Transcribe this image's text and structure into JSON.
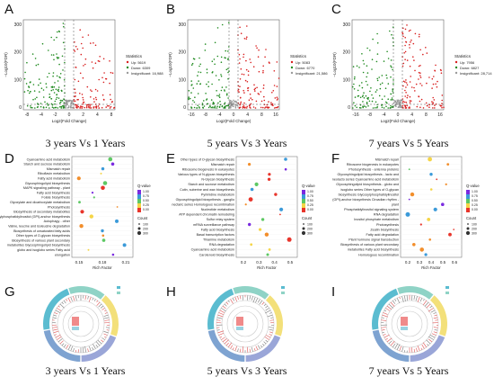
{
  "panel_letters": [
    "A",
    "B",
    "C",
    "D",
    "E",
    "F",
    "G",
    "H",
    "I"
  ],
  "captions": [
    "3 years Vs 1 Years",
    "5 years Vs 3 Years",
    "7 years Vs 5 Years"
  ],
  "colors": {
    "up": "#d81e1e",
    "down": "#1f8a1f",
    "insig": "#9a9a9a",
    "bubble_low": "#e8352b",
    "bubble_high": "#7a2be0"
  },
  "volcano": [
    {
      "x_label": "Log2(Fold Change)",
      "y_label": "−Log10(FDR)",
      "legend_title": "Statistics",
      "legend": [
        "Up: 5619",
        "Down: 6309",
        "Insignificant: 16,988"
      ],
      "x_ticks": [
        "-8",
        "-4",
        "-2",
        "0",
        "2",
        "4",
        "8"
      ],
      "y_ticks": [
        "0",
        "100",
        "200",
        "300"
      ]
    },
    {
      "x_label": "Log2(Fold Change)",
      "y_label": "−Log10(FDR)",
      "legend_title": "Statistics",
      "legend": [
        "Up: 5083",
        "Down: 6770",
        "Insignificant: 21,586"
      ],
      "x_ticks": [
        "-16",
        "-8",
        "-4",
        "0",
        "4",
        "8",
        "16"
      ],
      "y_ticks": [
        "0",
        "100",
        "200",
        "300"
      ]
    },
    {
      "x_label": "Log2(Fold Change)",
      "y_label": "−Log10(FDR)",
      "legend_title": "Statistics",
      "legend": [
        "Up: 7956",
        "Down: 6827",
        "Insignificant: 28,714"
      ],
      "x_ticks": [
        "-16",
        "-8",
        "-4",
        "0",
        "4",
        "8",
        "16"
      ],
      "y_ticks": [
        "0",
        "100",
        "200",
        "300"
      ]
    }
  ],
  "bubble": [
    {
      "x_label": "Rich Factor",
      "legend_color_title": "Q-value",
      "legend_size_title": "Count",
      "color_ticks": [
        "1.00",
        "0.75",
        "0.50",
        "0.25",
        "0.00"
      ],
      "size_ticks": [
        "100",
        "200",
        "300"
      ],
      "x_ticks": [
        "0.15",
        "0.18",
        "0.21"
      ],
      "pathways": [
        "Cyanoamino acid metabolism",
        "Starch and sucrose metabolism",
        "Mismatch repair",
        "Riboflavin metabolism",
        "Fatty acid metabolism",
        "Glycosphingolipid biosynthesis",
        "MAPK signaling pathway - plant",
        "Fatty acid biosynthesis",
        "Folate biosynthesis",
        "Glyoxylate and dicarboxylate metabolism",
        "Photosynthesis",
        "Biosynthesis of secondary metabolites",
        "Glycosylphosphatidylinositol (GPI)-anchor biosynthesis",
        "Autophagy - other",
        "Valine, leucine and isoleucine degradation",
        "Biosynthesis of unsaturated fatty acids",
        "Other types of O-glycan biosynthesis",
        "Biosynthesis of various plant secondary",
        "metabolites Glycosphingolipid biosynthesis",
        "globo and isoglobo series Fatty acid",
        "elongation"
      ]
    },
    {
      "x_label": "Rich Factor",
      "legend_color_title": "Q-value",
      "legend_size_title": "Count",
      "color_ticks": [
        "1.00",
        "0.75",
        "0.50",
        "0.25",
        "0.00"
      ],
      "size_ticks": [
        "100",
        "200",
        "300"
      ],
      "x_ticks": [
        "0.2",
        "0.3",
        "0.4",
        "0.5"
      ],
      "pathways": [
        "Other types of O-glycan biosynthesis",
        "Mismatch repair",
        "Ribosome biogenesis in eukaryotes",
        "Various types of N-glycan biosynthesis",
        "N-Glycan biosynthesis",
        "Starch and sucrose metabolism",
        "Cutin, suberine and wax biosynthesis",
        "Pyrimidine metabolism",
        "Glycosphingolipid biosynthesis - ganglio",
        "nectaric series Homologous recombination",
        "Nucleotide metabolism",
        "ATP dependent chromatin remodeling",
        "Sulfur relay system",
        "mRNA surveillance pathway",
        "Fatty acid biosynthesis",
        "Basal transcription factors",
        "Thiamine metabolism",
        "RNA degradation",
        "Cyanoamino acid metabolism",
        "Carotenoid biosynthesis"
      ]
    },
    {
      "x_label": "Rich Factor",
      "legend_color_title": "Q-value",
      "legend_size_title": "Count",
      "color_ticks": [
        "1.00",
        "0.75",
        "0.50",
        "0.25",
        "0.00"
      ],
      "size_ticks": [
        "100",
        "200",
        "300"
      ],
      "x_ticks": [
        "0.2",
        "0.3",
        "0.4",
        "0.5",
        "0.6"
      ],
      "pathways": [
        "Mismatch repair",
        "Ribosome biogenesis in eukaryotes",
        "Photosynthesis - antenna proteins",
        "Glycosphingolipid biosynthesis - lacto and",
        "neolacto series Cyanoamino acid metabolism",
        "Glycosphingolipid biosynthesis - globo and",
        "isoglobo series Other types of O-glycan",
        "biosynthesis Glycosylphosphatidylinositol",
        "(GPI)-anchor biosynthesis Circadian rhythm -",
        "plant",
        "Phosphatidylinositol signaling system",
        "RNA degradation",
        "Inositol phosphate metabolism",
        "Photosynthesis",
        "Zeatin biosynthesis",
        "Fatty acid degradation",
        "Plant hormone signal transduction",
        "Biosynthesis of various plant secondary",
        "metabolites Fatty acid biosynthesis",
        "Homologous recombination"
      ]
    }
  ]
}
